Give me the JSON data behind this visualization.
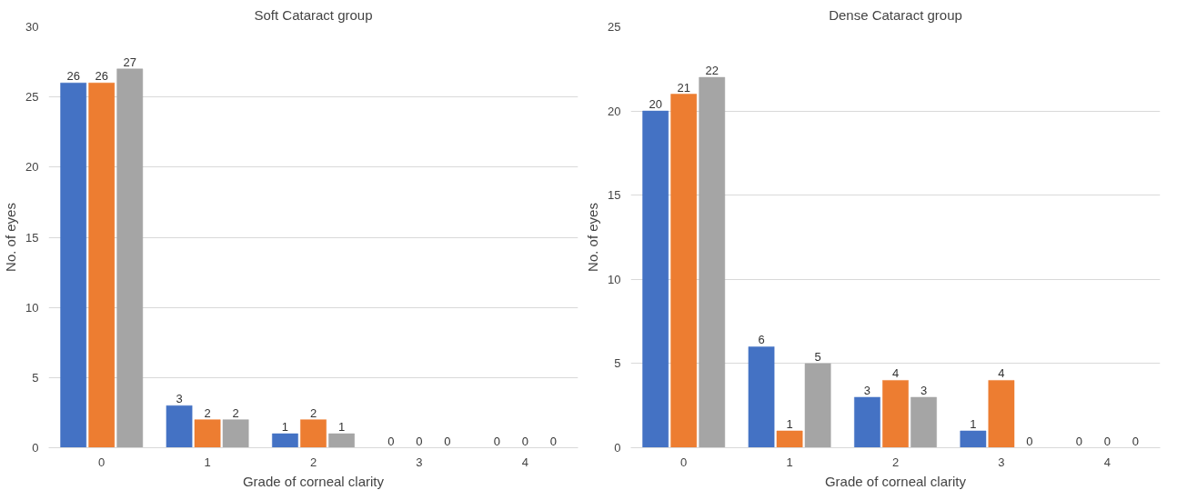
{
  "chart_data": [
    {
      "type": "bar",
      "title": "Soft Cataract group",
      "xlabel": "Grade of corneal clarity",
      "ylabel": "No. of eyes",
      "categories": [
        "0",
        "1",
        "2",
        "3",
        "4"
      ],
      "series": [
        {
          "color": "#4472c4",
          "values": [
            26,
            3,
            1,
            0,
            0
          ]
        },
        {
          "color": "#ed7d31",
          "values": [
            26,
            2,
            2,
            0,
            0
          ]
        },
        {
          "color": "#a5a5a5",
          "values": [
            27,
            2,
            1,
            0,
            0
          ]
        }
      ],
      "ylim": [
        0,
        30
      ],
      "yticks": [
        0,
        5,
        10,
        15,
        20,
        25,
        30
      ],
      "grid": "y",
      "data_labels": true
    },
    {
      "type": "bar",
      "title": "Dense Cataract group",
      "xlabel": "Grade of corneal clarity",
      "ylabel": "No. of eyes",
      "categories": [
        "0",
        "1",
        "2",
        "3",
        "4"
      ],
      "series": [
        {
          "color": "#4472c4",
          "values": [
            20,
            6,
            3,
            1,
            0
          ]
        },
        {
          "color": "#ed7d31",
          "values": [
            21,
            1,
            4,
            4,
            0
          ]
        },
        {
          "color": "#a5a5a5",
          "values": [
            22,
            5,
            3,
            0,
            0
          ]
        }
      ],
      "ylim": [
        0,
        25
      ],
      "yticks": [
        0,
        5,
        10,
        15,
        20,
        25
      ],
      "grid": "y",
      "data_labels": true
    }
  ]
}
